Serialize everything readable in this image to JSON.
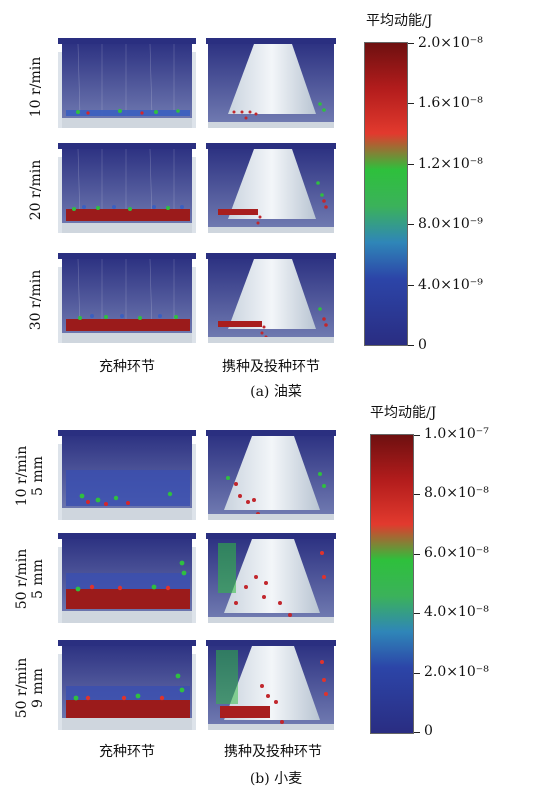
{
  "figure_a": {
    "caption": "(a) 油菜",
    "colorbar_title": "平均动能/J",
    "colorbar_ticks": [
      "2.0×10⁻⁸",
      "1.6×10⁻⁸",
      "1.2×10⁻⁸",
      "8.0×10⁻⁹",
      "4.0×10⁻⁹",
      "0"
    ],
    "row_labels": [
      "10 r/min",
      "20 r/min",
      "30 r/min"
    ],
    "column_labels": [
      "充种环节",
      "携种及投种环节"
    ]
  },
  "figure_b": {
    "caption": "(b) 小麦",
    "colorbar_title": "平均动能/J",
    "colorbar_ticks": [
      "1.0×10⁻⁷",
      "8.0×10⁻⁸",
      "6.0×10⁻⁸",
      "4.0×10⁻⁸",
      "2.0×10⁻⁸",
      "0"
    ],
    "row_labels": [
      [
        "10 r/min",
        "5 mm"
      ],
      [
        "50 r/min",
        "5 mm"
      ],
      [
        "50 r/min",
        "9 mm"
      ]
    ],
    "column_labels": [
      "充种环节",
      "携种及投种环节"
    ]
  },
  "colors": {
    "scale_low": "#2b2f86",
    "scale_mid": "#2fa84a",
    "scale_high": "#7a1010",
    "panel_bg": "#3a3f8f",
    "funnel": "#e6ecf2"
  }
}
